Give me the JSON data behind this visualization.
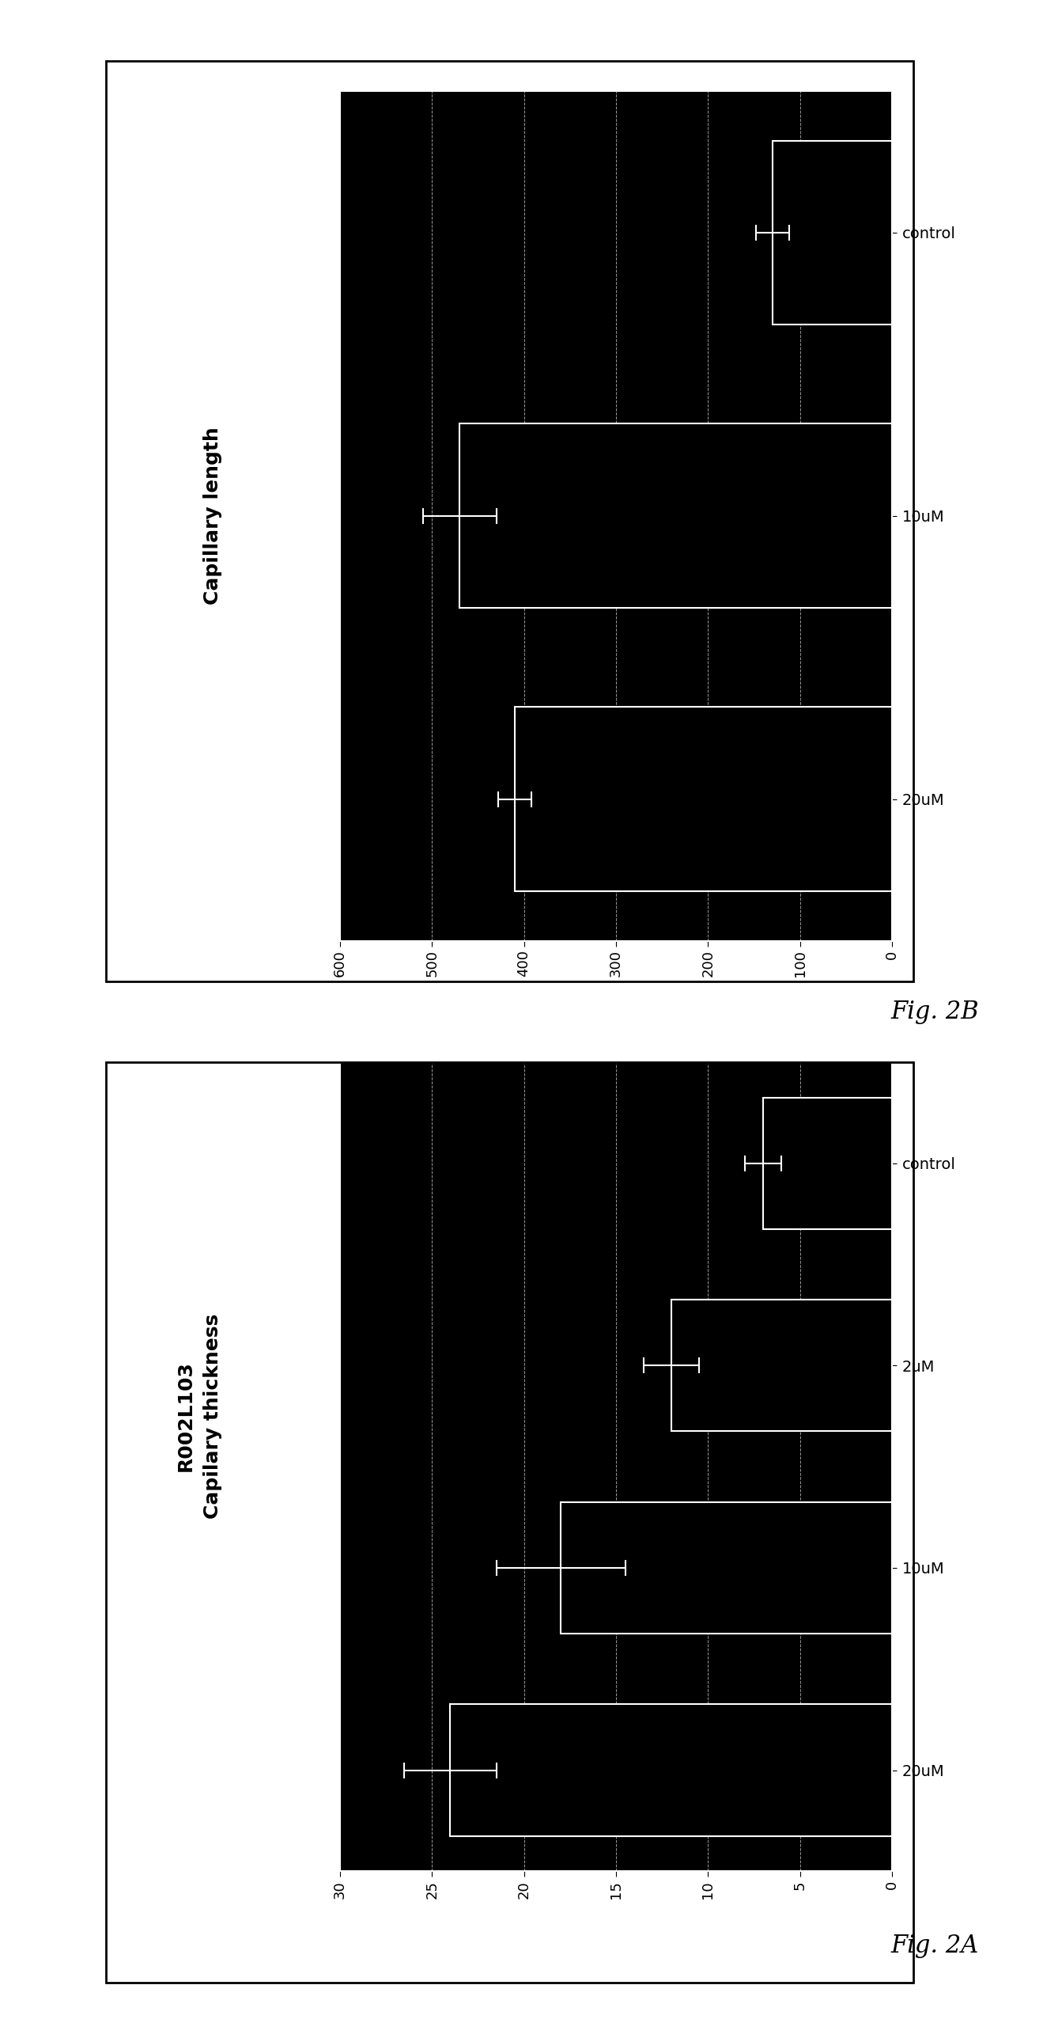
{
  "fig_b": {
    "title": "Capillary length",
    "categories": [
      "20uM",
      "10uM",
      "control"
    ],
    "values": [
      410,
      470,
      130
    ],
    "errors": [
      18,
      40,
      18
    ],
    "xlim": [
      600,
      0
    ],
    "xticks": [
      600,
      500,
      400,
      300,
      200,
      100,
      0
    ],
    "xtick_labels": [
      "600",
      "500",
      "400",
      "300",
      "200",
      "100",
      "0"
    ],
    "bar_color": "#000000",
    "bar_edge_color": "#ffffff",
    "bg_color": "#000000",
    "fig_label": "Fig. 2B",
    "title_fontsize": 18,
    "label_fontsize": 14,
    "tick_fontsize": 13
  },
  "fig_a": {
    "title": "Capilary thickness\nR002L103",
    "categories": [
      "20uM",
      "10uM",
      "2uM",
      "control"
    ],
    "values": [
      24,
      18,
      12,
      7
    ],
    "errors": [
      2.5,
      3.5,
      1.5,
      1.0
    ],
    "xlim": [
      30,
      0
    ],
    "xticks": [
      30,
      25,
      20,
      15,
      10,
      5,
      0
    ],
    "xtick_labels": [
      "30",
      "25",
      "20",
      "15",
      "10",
      "5",
      "0"
    ],
    "bar_color": "#000000",
    "bar_edge_color": "#ffffff",
    "bg_color": "#000000",
    "fig_label": "Fig. 2A",
    "title_fontsize": 18,
    "label_fontsize": 14,
    "tick_fontsize": 13
  }
}
